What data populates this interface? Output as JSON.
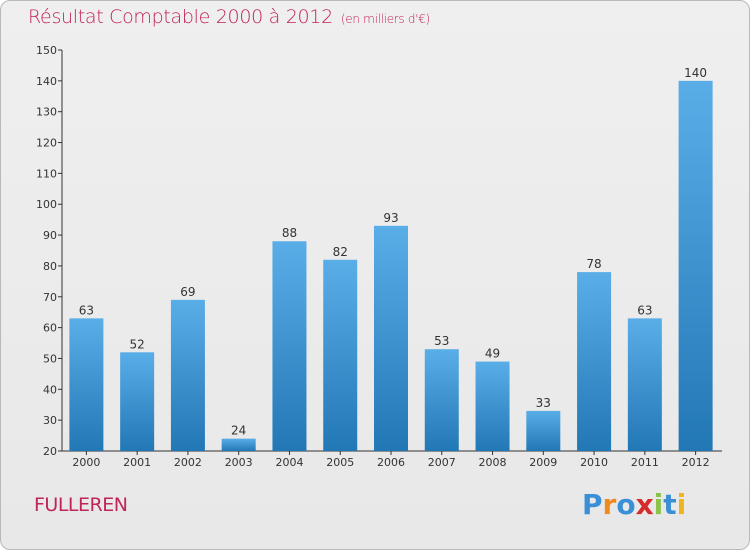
{
  "chart_data": {
    "type": "bar",
    "title": "Résultat Comptable 2000 à 2012",
    "subtitle": "(en milliers d'€)",
    "categories": [
      "2000",
      "2001",
      "2002",
      "2003",
      "2004",
      "2005",
      "2006",
      "2007",
      "2008",
      "2009",
      "2010",
      "2011",
      "2012"
    ],
    "values": [
      63,
      52,
      69,
      24,
      88,
      82,
      93,
      53,
      49,
      33,
      78,
      63,
      140
    ],
    "ylim": [
      20,
      150
    ],
    "yticks": [
      20,
      30,
      40,
      50,
      60,
      70,
      80,
      90,
      100,
      110,
      120,
      130,
      140,
      150
    ],
    "xlabel": "",
    "ylabel": "",
    "grid": false,
    "bar_color_top": "#5aaee8",
    "bar_color_bottom": "#2277b5"
  },
  "commune": "FULLEREN",
  "logo": {
    "letters": [
      "P",
      "r",
      "o",
      "x",
      "i",
      "t",
      "i"
    ],
    "colors": [
      "#3a8fd6",
      "#f08a1c",
      "#3a8fd6",
      "#d62b2b",
      "#8bc34a",
      "#3a8fd6",
      "#f0b41c"
    ]
  },
  "colors": {
    "accent": "#c0245a",
    "axis": "#333333"
  }
}
